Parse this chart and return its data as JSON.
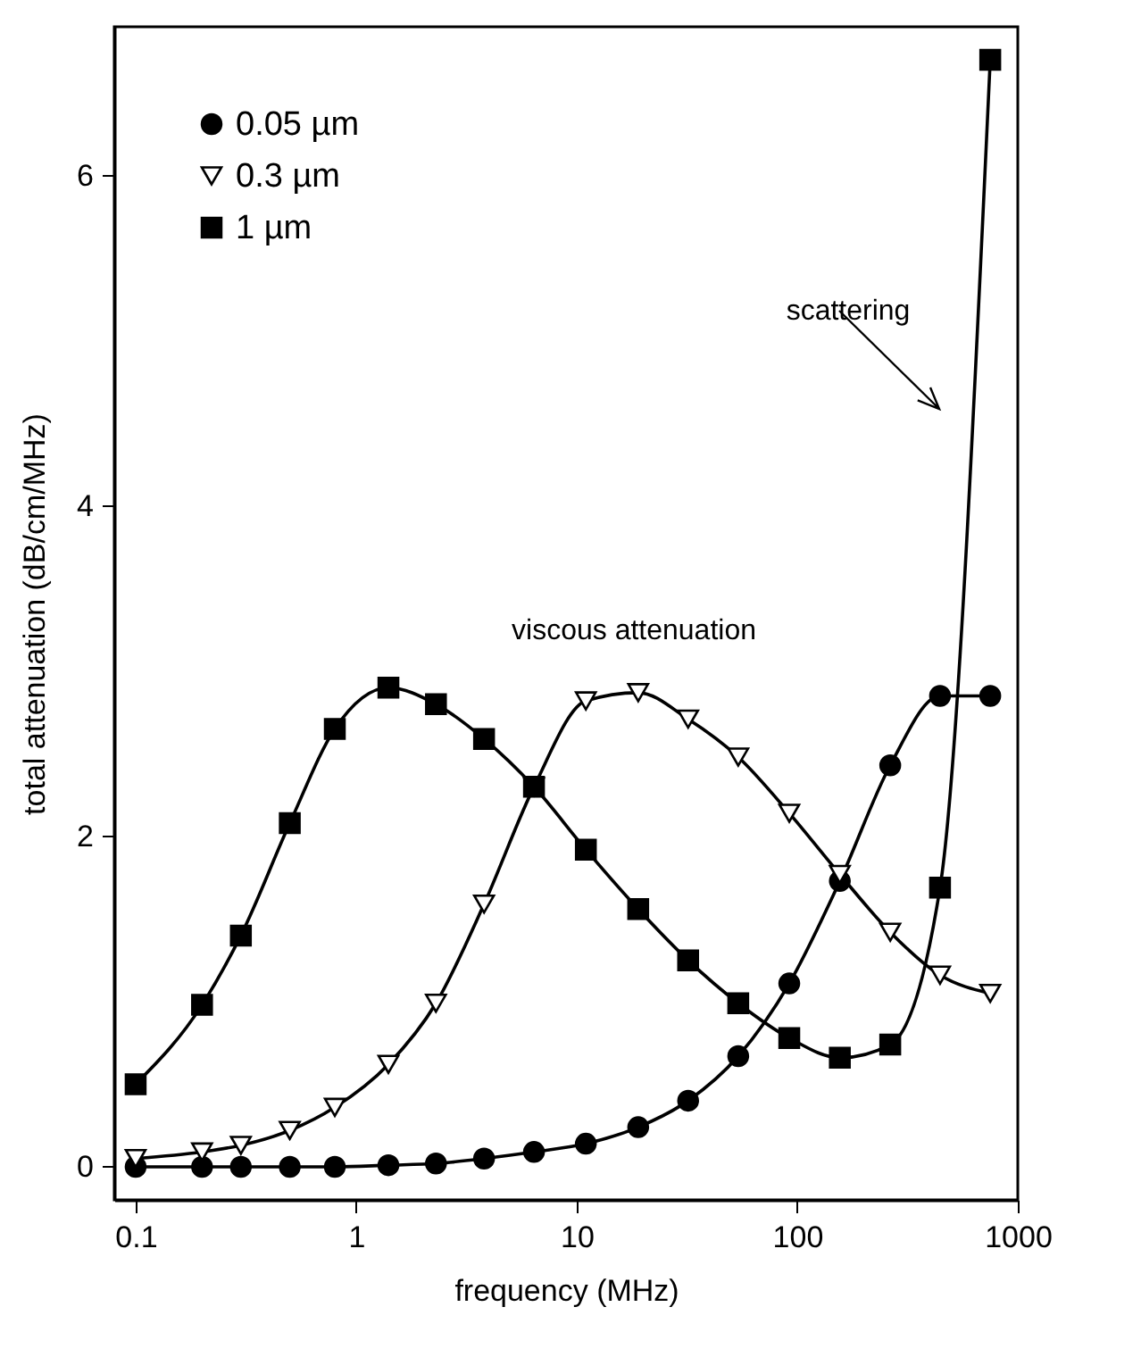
{
  "chart_data": {
    "type": "line",
    "xlabel": "frequency (MHz)",
    "ylabel": "total attenuation (dB/cm/MHz)",
    "x": [
      0.1,
      0.2,
      0.3,
      0.5,
      0.8,
      1.4,
      2.3,
      3.8,
      6.4,
      11,
      19,
      32,
      54,
      92,
      156,
      264,
      444,
      750
    ],
    "series": [
      {
        "name": "0.05 µm",
        "color": "#000000",
        "marker": "circle",
        "values": [
          0.0,
          0.0,
          0.0,
          0.0,
          0.0,
          0.01,
          0.02,
          0.05,
          0.09,
          0.14,
          0.24,
          0.4,
          0.67,
          1.11,
          1.73,
          2.43,
          2.85,
          2.85
        ]
      },
      {
        "name": "0.3 µm",
        "color": "#000000",
        "marker": "triangle",
        "values": [
          0.05,
          0.09,
          0.13,
          0.22,
          0.36,
          0.62,
          0.99,
          1.59,
          2.3,
          2.82,
          2.87,
          2.71,
          2.48,
          2.14,
          1.77,
          1.42,
          1.16,
          1.05
        ]
      },
      {
        "name": "1 µm",
        "color": "#000000",
        "marker": "square",
        "values": [
          0.5,
          0.98,
          1.4,
          2.08,
          2.65,
          2.9,
          2.8,
          2.59,
          2.3,
          1.92,
          1.56,
          1.25,
          0.99,
          0.78,
          0.66,
          0.74,
          1.69,
          6.7
        ]
      }
    ],
    "log": "x",
    "xlim": [
      0.08,
      1000
    ],
    "xticks": [
      0.1,
      1,
      10,
      100,
      1000
    ],
    "ylim": [
      -0.2,
      6.9
    ],
    "yticks": [
      0,
      2,
      4,
      6
    ],
    "grid": false,
    "legend": "top left",
    "annotations": [
      "viscous attenuation",
      "scattering"
    ]
  }
}
